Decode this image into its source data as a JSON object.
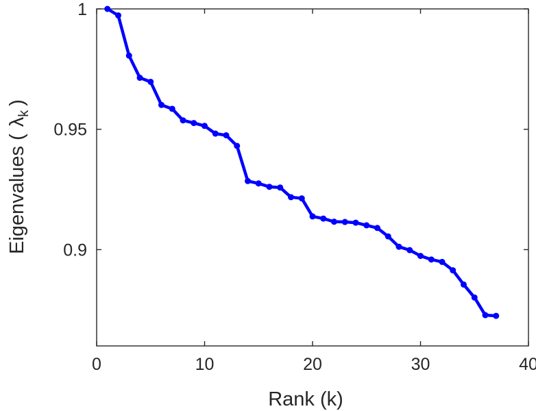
{
  "chart_data": {
    "type": "line",
    "title": "",
    "xlabel": "Rank (k)",
    "ylabel": {
      "prefix": "Eigenvalues (",
      "symbol": "λ",
      "subscript": "k",
      "suffix": ")"
    },
    "xlim": [
      0,
      40
    ],
    "ylim": [
      0.86,
      1.0
    ],
    "xticks": [
      0,
      10,
      20,
      30,
      40
    ],
    "xtick_labels": [
      "0",
      "10",
      "20",
      "30",
      "40"
    ],
    "yticks": [
      0.9,
      0.95,
      1.0
    ],
    "ytick_labels": [
      "0.9",
      "0.95",
      "1"
    ],
    "grid": false,
    "color": "#0000ff",
    "series": [
      {
        "x": [
          1,
          2,
          3,
          4,
          5,
          6,
          7,
          8,
          9,
          10,
          11,
          12,
          13,
          14,
          15,
          16,
          17,
          18,
          19,
          20,
          21,
          22,
          23,
          24,
          25,
          26,
          27,
          28,
          29,
          30,
          31,
          32,
          33,
          34,
          35,
          36,
          37
        ],
        "values": [
          1.0,
          0.9973,
          0.9806,
          0.9714,
          0.9697,
          0.9601,
          0.9585,
          0.9537,
          0.9526,
          0.9514,
          0.9482,
          0.9475,
          0.9431,
          0.9285,
          0.9275,
          0.9261,
          0.9258,
          0.9218,
          0.9213,
          0.9138,
          0.9129,
          0.9116,
          0.9115,
          0.9112,
          0.9101,
          0.909,
          0.9055,
          0.9012,
          0.8998,
          0.8974,
          0.8959,
          0.8949,
          0.8914,
          0.8855,
          0.8801,
          0.8728,
          0.8725
        ]
      }
    ]
  }
}
